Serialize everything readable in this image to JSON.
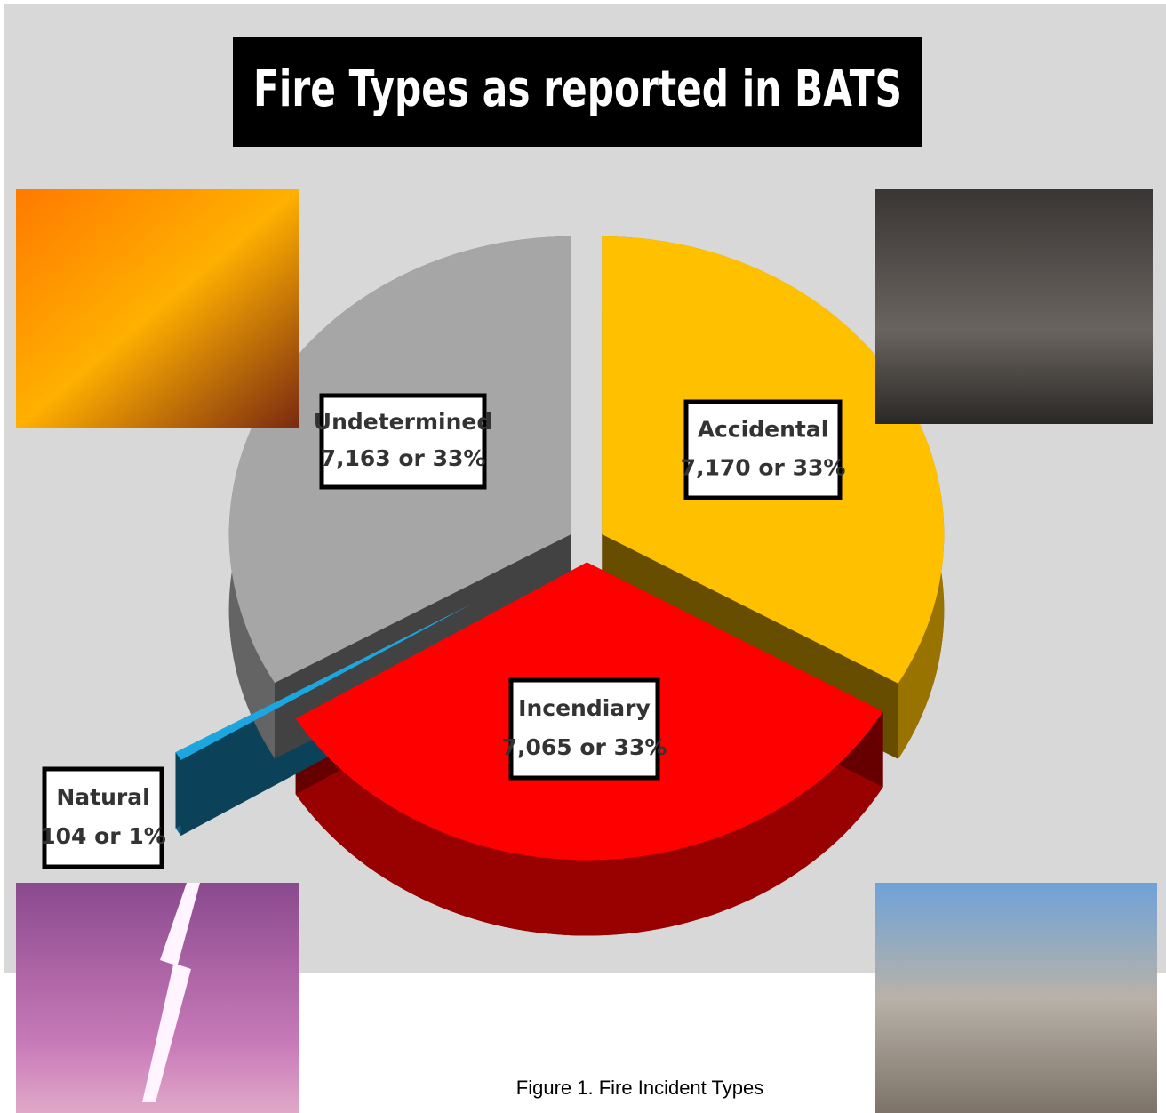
{
  "chart_data": {
    "type": "pie",
    "title": "Fire Types as reported in BATS",
    "categories": [
      "Accidental",
      "Incendiary",
      "Natural",
      "Undetermined"
    ],
    "values": [
      7170,
      7065,
      104,
      7163
    ],
    "value_labels": [
      "7,170 or 33%",
      "7,065 or 33%",
      "104 or 1%",
      "7,163 or 33%"
    ],
    "colors": [
      "#ffc000",
      "#ff0000",
      "#1ba6e0",
      "#a6a6a6"
    ],
    "caption": "Figure 1.  Fire Incident Types"
  }
}
